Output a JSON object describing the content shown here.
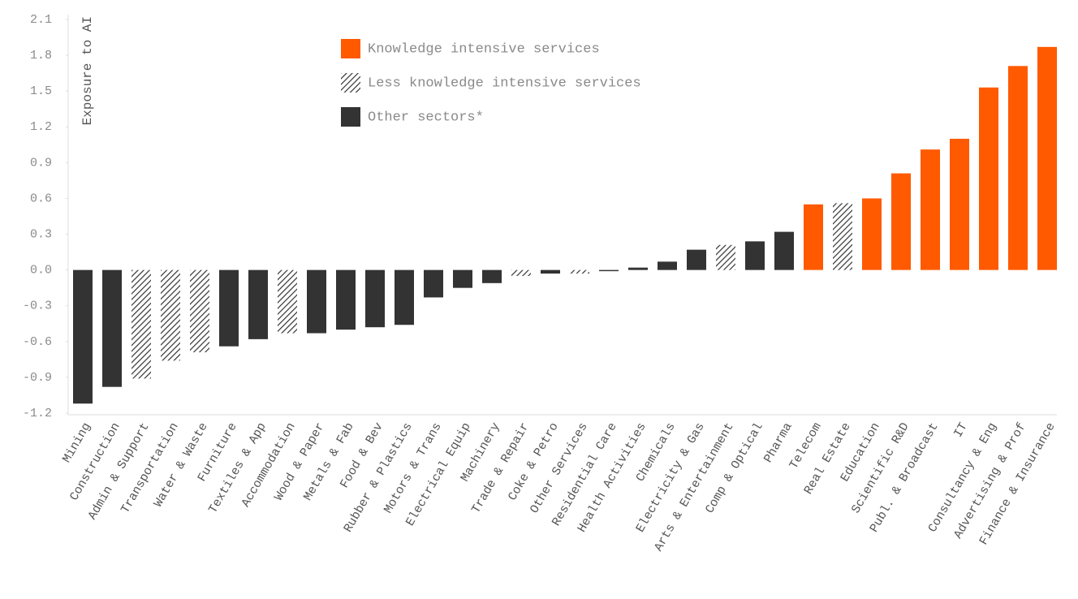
{
  "chart_data": {
    "type": "bar",
    "y_label": "Exposure to AI",
    "categories": [
      "Mining",
      "Construction",
      "Admin & Support",
      "Transportation",
      "Water & Waste",
      "Furniture",
      "Textiles & App",
      "Accommodation",
      "Wood & Paper",
      "Metals & Fab",
      "Food & Bev",
      "Rubber & Plastics",
      "Motors & Trans",
      "Electrical Equip",
      "Machinery",
      "Trade & Repair",
      "Coke & Petro",
      "Other Services",
      "Residential Care",
      "Health Activities",
      "Chemicals",
      "Electricity & Gas",
      "Arts & Entertainment",
      "Comp & Optical",
      "Pharma",
      "Telecom",
      "Real Estate",
      "Education",
      "Scientific R&D",
      "Publ. & Broadcast",
      "IT",
      "Consultancy & Eng",
      "Advertising & Prof",
      "Finance & Insurance"
    ],
    "series": [
      {
        "name": "Knowledge intensive services",
        "color": "#ff5a00",
        "hatch": false,
        "values": [
          null,
          null,
          null,
          null,
          null,
          null,
          null,
          null,
          null,
          null,
          null,
          null,
          null,
          null,
          null,
          null,
          null,
          null,
          null,
          null,
          null,
          null,
          null,
          null,
          null,
          0.55,
          null,
          0.6,
          0.81,
          1.01,
          1.1,
          1.53,
          1.71,
          1.87
        ]
      },
      {
        "name": "Less knowledge intensive services",
        "color": "#333333",
        "hatch": true,
        "values": [
          null,
          null,
          -0.91,
          -0.76,
          -0.69,
          null,
          null,
          -0.53,
          null,
          null,
          null,
          null,
          null,
          null,
          null,
          -0.05,
          null,
          -0.03,
          null,
          null,
          null,
          null,
          0.21,
          null,
          null,
          null,
          0.56,
          null,
          null,
          null,
          null,
          null,
          null,
          null
        ]
      },
      {
        "name": "Other sectors*",
        "color": "#333333",
        "hatch": false,
        "values": [
          -1.12,
          -0.98,
          null,
          null,
          null,
          -0.64,
          -0.58,
          null,
          -0.53,
          -0.5,
          -0.48,
          -0.46,
          -0.23,
          -0.15,
          -0.11,
          null,
          -0.03,
          null,
          -0.01,
          0.02,
          0.07,
          0.17,
          null,
          0.24,
          0.32,
          null,
          null,
          null,
          null,
          null,
          null,
          null,
          null,
          null
        ]
      }
    ],
    "ylim": [
      -1.2,
      2.1
    ],
    "yticks": [
      2.1,
      1.8,
      1.5,
      1.2,
      0.9,
      0.6,
      0.3,
      {
        "value": 0,
        "label": "0.0"
      },
      -0.3,
      -0.6,
      -0.9,
      -1.2
    ]
  }
}
